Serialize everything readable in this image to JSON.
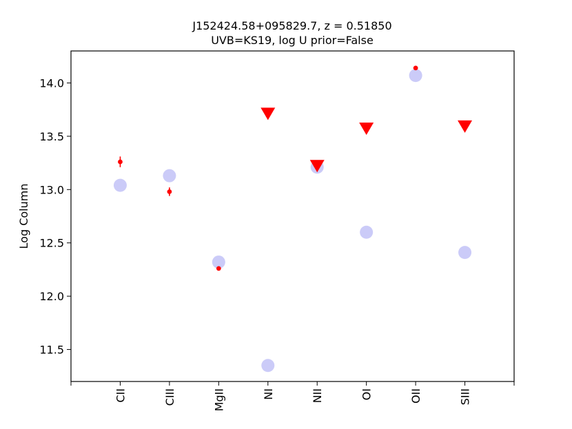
{
  "chart_data": {
    "type": "scatter",
    "title_line1": "J152424.58+095829.7, z = 0.51850",
    "title_line2": "UVB=KS19, log U prior=False",
    "xlabel": "",
    "ylabel": "Log Column",
    "categories": [
      "CII",
      "CIII",
      "MgII",
      "NI",
      "NII",
      "OI",
      "OII",
      "SIII"
    ],
    "ylim": [
      11.2,
      14.3
    ],
    "yticks": [
      "11.5",
      "12.0",
      "12.5",
      "13.0",
      "13.5",
      "14.0"
    ],
    "grid": false,
    "series": [
      {
        "kind": "model",
        "color": "#b9baf5",
        "marker": "circle",
        "points": [
          {
            "cat": "CII",
            "y": 13.04
          },
          {
            "cat": "CIII",
            "y": 13.13
          },
          {
            "cat": "MgII",
            "y": 12.32
          },
          {
            "cat": "NI",
            "y": 11.35
          },
          {
            "cat": "NII",
            "y": 13.21
          },
          {
            "cat": "OI",
            "y": 12.6
          },
          {
            "cat": "OII",
            "y": 14.07
          },
          {
            "cat": "SIII",
            "y": 12.41
          }
        ]
      },
      {
        "kind": "measurement",
        "color": "#ff0000",
        "marker": "dot",
        "points": [
          {
            "cat": "CII",
            "y": 13.26,
            "err": 0.05
          },
          {
            "cat": "CIII",
            "y": 12.98,
            "err": 0.04
          },
          {
            "cat": "MgII",
            "y": 12.26,
            "err": 0.0
          },
          {
            "cat": "OII",
            "y": 14.14,
            "err": 0.0
          }
        ]
      },
      {
        "kind": "upper_limit",
        "color": "#ff0000",
        "marker": "triangle-down",
        "points": [
          {
            "cat": "NI",
            "y": 13.71
          },
          {
            "cat": "NII",
            "y": 13.22
          },
          {
            "cat": "OI",
            "y": 13.57
          },
          {
            "cat": "SIII",
            "y": 13.59
          }
        ]
      }
    ]
  }
}
